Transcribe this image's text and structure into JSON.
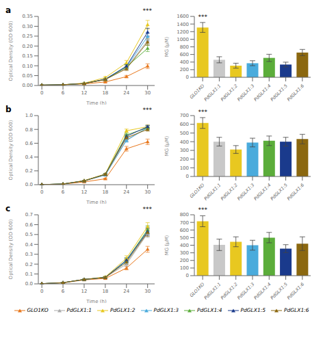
{
  "chart_data": [
    {
      "type": "line",
      "title": "a",
      "annotation": "***",
      "xlabel": "Time (h)",
      "ylabel": "Optical Density (OD 600)",
      "x": [
        0,
        6,
        12,
        18,
        24,
        30
      ],
      "xlim": [
        -1,
        32
      ],
      "xticks": [
        0,
        6,
        12,
        18,
        24,
        30
      ],
      "ylim": [
        0,
        0.35
      ],
      "yticks": [
        {
          "value": 0,
          "label": "0.00"
        },
        {
          "value": 0.05,
          "label": "0.05"
        },
        {
          "value": 0.1,
          "label": "0.10"
        },
        {
          "value": 0.15,
          "label": "0.15"
        },
        {
          "value": 0.2,
          "label": "0.20"
        },
        {
          "value": 0.25,
          "label": "0.25"
        },
        {
          "value": 0.3,
          "label": "0.30"
        },
        {
          "value": 0.35,
          "label": "0.35"
        }
      ],
      "marker": "triangle",
      "grid": false,
      "legend": "bottom",
      "series": [
        {
          "name": "GLO1KO",
          "color": "#E8761A",
          "values": [
            0.002,
            0.004,
            0.008,
            0.018,
            0.045,
            0.098
          ],
          "errors": [
            0.0005,
            0.001,
            0.001,
            0.003,
            0.006,
            0.012
          ]
        },
        {
          "name": "PdGLX1:1",
          "color": "#AAAAAA",
          "values": [
            0.002,
            0.004,
            0.01,
            0.03,
            0.09,
            0.228
          ],
          "errors": [
            0.0005,
            0.001,
            0.002,
            0.004,
            0.01,
            0.018
          ]
        },
        {
          "name": "PdGLX1:2",
          "color": "#E8C820",
          "values": [
            0.002,
            0.004,
            0.012,
            0.04,
            0.115,
            0.308
          ],
          "errors": [
            0.0005,
            0.001,
            0.002,
            0.005,
            0.012,
            0.022
          ]
        },
        {
          "name": "PdGLX1:3",
          "color": "#4AABDC",
          "values": [
            0.002,
            0.004,
            0.01,
            0.032,
            0.095,
            0.248
          ],
          "errors": [
            0.0005,
            0.001,
            0.002,
            0.004,
            0.01,
            0.018
          ]
        },
        {
          "name": "PdGLX1:4",
          "color": "#5BAD3A",
          "values": [
            0.002,
            0.004,
            0.01,
            0.03,
            0.095,
            0.188
          ],
          "errors": [
            0.0005,
            0.001,
            0.002,
            0.004,
            0.011,
            0.016
          ]
        },
        {
          "name": "PdGLX1:5",
          "color": "#1A3A8C",
          "values": [
            0.002,
            0.004,
            0.01,
            0.032,
            0.098,
            0.27
          ],
          "errors": [
            0.0005,
            0.001,
            0.002,
            0.004,
            0.01,
            0.02
          ]
        },
        {
          "name": "PdGLX1:6",
          "color": "#8B6810",
          "values": [
            0.002,
            0.004,
            0.01,
            0.03,
            0.085,
            0.22
          ],
          "errors": [
            0.0005,
            0.001,
            0.002,
            0.004,
            0.009,
            0.016
          ]
        }
      ]
    },
    {
      "type": "bar",
      "annotation": "***",
      "ylabel": "MG (μM)",
      "categories": [
        "GLO1KO",
        "PdGLX1:1",
        "PdGLX1:2",
        "PdGLX1:3",
        "PdGLX1:4",
        "PdGLX1:5",
        "PdGLX1:6"
      ],
      "values": [
        1310,
        460,
        305,
        370,
        510,
        335,
        650
      ],
      "errors": [
        130,
        80,
        65,
        65,
        95,
        62,
        82
      ],
      "colors": [
        "#E8C820",
        "#C8C8C8",
        "#E8C820",
        "#4AABDC",
        "#5BAD3A",
        "#1A3A8C",
        "#8B6810"
      ],
      "ylim": [
        0,
        1600
      ],
      "yticks": [
        0,
        200,
        400,
        600,
        800,
        1000,
        1200,
        1400,
        1600
      ],
      "grid": false
    },
    {
      "type": "line",
      "title": "b",
      "annotation": "***",
      "xlabel": "Time (h)",
      "ylabel": "Optical Density (OD 600)",
      "x": [
        0,
        6,
        12,
        18,
        24,
        30
      ],
      "xlim": [
        -1,
        32
      ],
      "xticks": [
        0,
        6,
        12,
        18,
        24,
        30
      ],
      "ylim": [
        0,
        1.0
      ],
      "yticks": [
        {
          "value": 0,
          "label": "0.0"
        },
        {
          "value": 0.2,
          "label": "0.2"
        },
        {
          "value": 0.4,
          "label": "0.4"
        },
        {
          "value": 0.6,
          "label": "0.6"
        },
        {
          "value": 0.8,
          "label": "0.8"
        },
        {
          "value": 1.0,
          "label": "1.0"
        }
      ],
      "marker": "triangle",
      "grid": false,
      "series": [
        {
          "name": "GLO1KO",
          "color": "#E8761A",
          "values": [
            0.002,
            0.008,
            0.04,
            0.085,
            0.52,
            0.62
          ],
          "errors": [
            0.001,
            0.001,
            0.004,
            0.008,
            0.035,
            0.04
          ]
        },
        {
          "name": "PdGLX1:1",
          "color": "#AAAAAA",
          "values": [
            0.002,
            0.01,
            0.055,
            0.14,
            0.65,
            0.83
          ],
          "errors": [
            0.001,
            0.001,
            0.004,
            0.01,
            0.025,
            0.025
          ]
        },
        {
          "name": "PdGLX1:2",
          "color": "#E8C820",
          "values": [
            0.002,
            0.01,
            0.06,
            0.155,
            0.78,
            0.84
          ],
          "errors": [
            0.001,
            0.001,
            0.004,
            0.01,
            0.025,
            0.025
          ]
        },
        {
          "name": "PdGLX1:3",
          "color": "#4AABDC",
          "values": [
            0.002,
            0.01,
            0.055,
            0.14,
            0.64,
            0.825
          ],
          "errors": [
            0.001,
            0.001,
            0.004,
            0.01,
            0.025,
            0.025
          ]
        },
        {
          "name": "PdGLX1:4",
          "color": "#5BAD3A",
          "values": [
            0.002,
            0.01,
            0.055,
            0.15,
            0.72,
            0.825
          ],
          "errors": [
            0.001,
            0.001,
            0.004,
            0.01,
            0.025,
            0.025
          ]
        },
        {
          "name": "PdGLX1:5",
          "color": "#1A3A8C",
          "values": [
            0.002,
            0.01,
            0.055,
            0.15,
            0.7,
            0.84
          ],
          "errors": [
            0.001,
            0.001,
            0.004,
            0.01,
            0.025,
            0.02
          ]
        },
        {
          "name": "PdGLX1:6",
          "color": "#8B6810",
          "values": [
            0.002,
            0.01,
            0.055,
            0.15,
            0.68,
            0.8
          ],
          "errors": [
            0.001,
            0.001,
            0.004,
            0.01,
            0.025,
            0.025
          ]
        }
      ]
    },
    {
      "type": "bar",
      "annotation": "***",
      "ylabel": "MG (μM)",
      "categories": [
        "GLO1KO",
        "PdGLX1:1",
        "PdGLX1:2",
        "PdGLX1:3",
        "PdGLX1:4",
        "PdGLX1:5",
        "PdGLX1:6"
      ],
      "values": [
        615,
        400,
        310,
        390,
        410,
        400,
        430
      ],
      "errors": [
        62,
        50,
        45,
        50,
        55,
        50,
        55
      ],
      "colors": [
        "#E8C820",
        "#C8C8C8",
        "#E8C820",
        "#4AABDC",
        "#5BAD3A",
        "#1A3A8C",
        "#8B6810"
      ],
      "ylim": [
        0,
        700
      ],
      "yticks": [
        0,
        100,
        200,
        300,
        400,
        500,
        600,
        700
      ],
      "grid": false
    },
    {
      "type": "line",
      "title": "c",
      "annotation": "***",
      "xlabel": "Time (h)",
      "ylabel": "Optical Density (OD 600)",
      "x": [
        0,
        6,
        12,
        18,
        24,
        30
      ],
      "xlim": [
        -1,
        32
      ],
      "xticks": [
        0,
        6,
        12,
        18,
        24,
        30
      ],
      "ylim": [
        0,
        0.7
      ],
      "yticks": [
        {
          "value": 0,
          "label": "0.0"
        },
        {
          "value": 0.1,
          "label": "0.1"
        },
        {
          "value": 0.2,
          "label": "0.2"
        },
        {
          "value": 0.3,
          "label": "0.3"
        },
        {
          "value": 0.4,
          "label": "0.4"
        },
        {
          "value": 0.5,
          "label": "0.5"
        },
        {
          "value": 0.6,
          "label": "0.6"
        },
        {
          "value": 0.7,
          "label": "0.7"
        }
      ],
      "marker": "triangle",
      "grid": false,
      "series": [
        {
          "name": "GLO1KO",
          "color": "#E8761A",
          "values": [
            0.002,
            0.01,
            0.04,
            0.055,
            0.16,
            0.35
          ],
          "errors": [
            0.001,
            0.001,
            0.003,
            0.008,
            0.018,
            0.03
          ]
        },
        {
          "name": "PdGLX1:1",
          "color": "#AAAAAA",
          "values": [
            0.002,
            0.012,
            0.042,
            0.065,
            0.2,
            0.51
          ],
          "errors": [
            0.001,
            0.001,
            0.003,
            0.008,
            0.022,
            0.04
          ]
        },
        {
          "name": "PdGLX1:2",
          "color": "#E8C820",
          "values": [
            0.002,
            0.012,
            0.045,
            0.07,
            0.26,
            0.58
          ],
          "errors": [
            0.001,
            0.001,
            0.003,
            0.008,
            0.025,
            0.04
          ]
        },
        {
          "name": "PdGLX1:3",
          "color": "#4AABDC",
          "values": [
            0.002,
            0.012,
            0.045,
            0.065,
            0.23,
            0.54
          ],
          "errors": [
            0.001,
            0.001,
            0.003,
            0.008,
            0.022,
            0.038
          ]
        },
        {
          "name": "PdGLX1:4",
          "color": "#5BAD3A",
          "values": [
            0.002,
            0.012,
            0.045,
            0.065,
            0.24,
            0.55
          ],
          "errors": [
            0.001,
            0.001,
            0.003,
            0.008,
            0.023,
            0.04
          ]
        },
        {
          "name": "PdGLX1:5",
          "color": "#1A3A8C",
          "values": [
            0.002,
            0.012,
            0.045,
            0.065,
            0.24,
            0.53
          ],
          "errors": [
            0.001,
            0.001,
            0.003,
            0.008,
            0.023,
            0.038
          ]
        },
        {
          "name": "PdGLX1:6",
          "color": "#8B6810",
          "values": [
            0.002,
            0.012,
            0.045,
            0.065,
            0.22,
            0.52
          ],
          "errors": [
            0.001,
            0.001,
            0.003,
            0.008,
            0.022,
            0.038
          ]
        }
      ]
    },
    {
      "type": "bar",
      "annotation": "***",
      "ylabel": "MG (μM)",
      "categories": [
        "GLO1KO",
        "PdGLX1:1",
        "PdGLX1:2",
        "PdGLX1:3",
        "PdGLX1:4",
        "PdGLX1:5",
        "PdGLX1:6"
      ],
      "values": [
        715,
        405,
        445,
        400,
        500,
        355,
        420
      ],
      "errors": [
        72,
        75,
        65,
        65,
        68,
        52,
        90
      ],
      "colors": [
        "#E8C820",
        "#C8C8C8",
        "#E8C820",
        "#4AABDC",
        "#5BAD3A",
        "#1A3A8C",
        "#8B6810"
      ],
      "ylim": [
        0,
        800
      ],
      "yticks": [
        0,
        100,
        200,
        300,
        400,
        500,
        600,
        700,
        800
      ],
      "grid": false
    }
  ]
}
